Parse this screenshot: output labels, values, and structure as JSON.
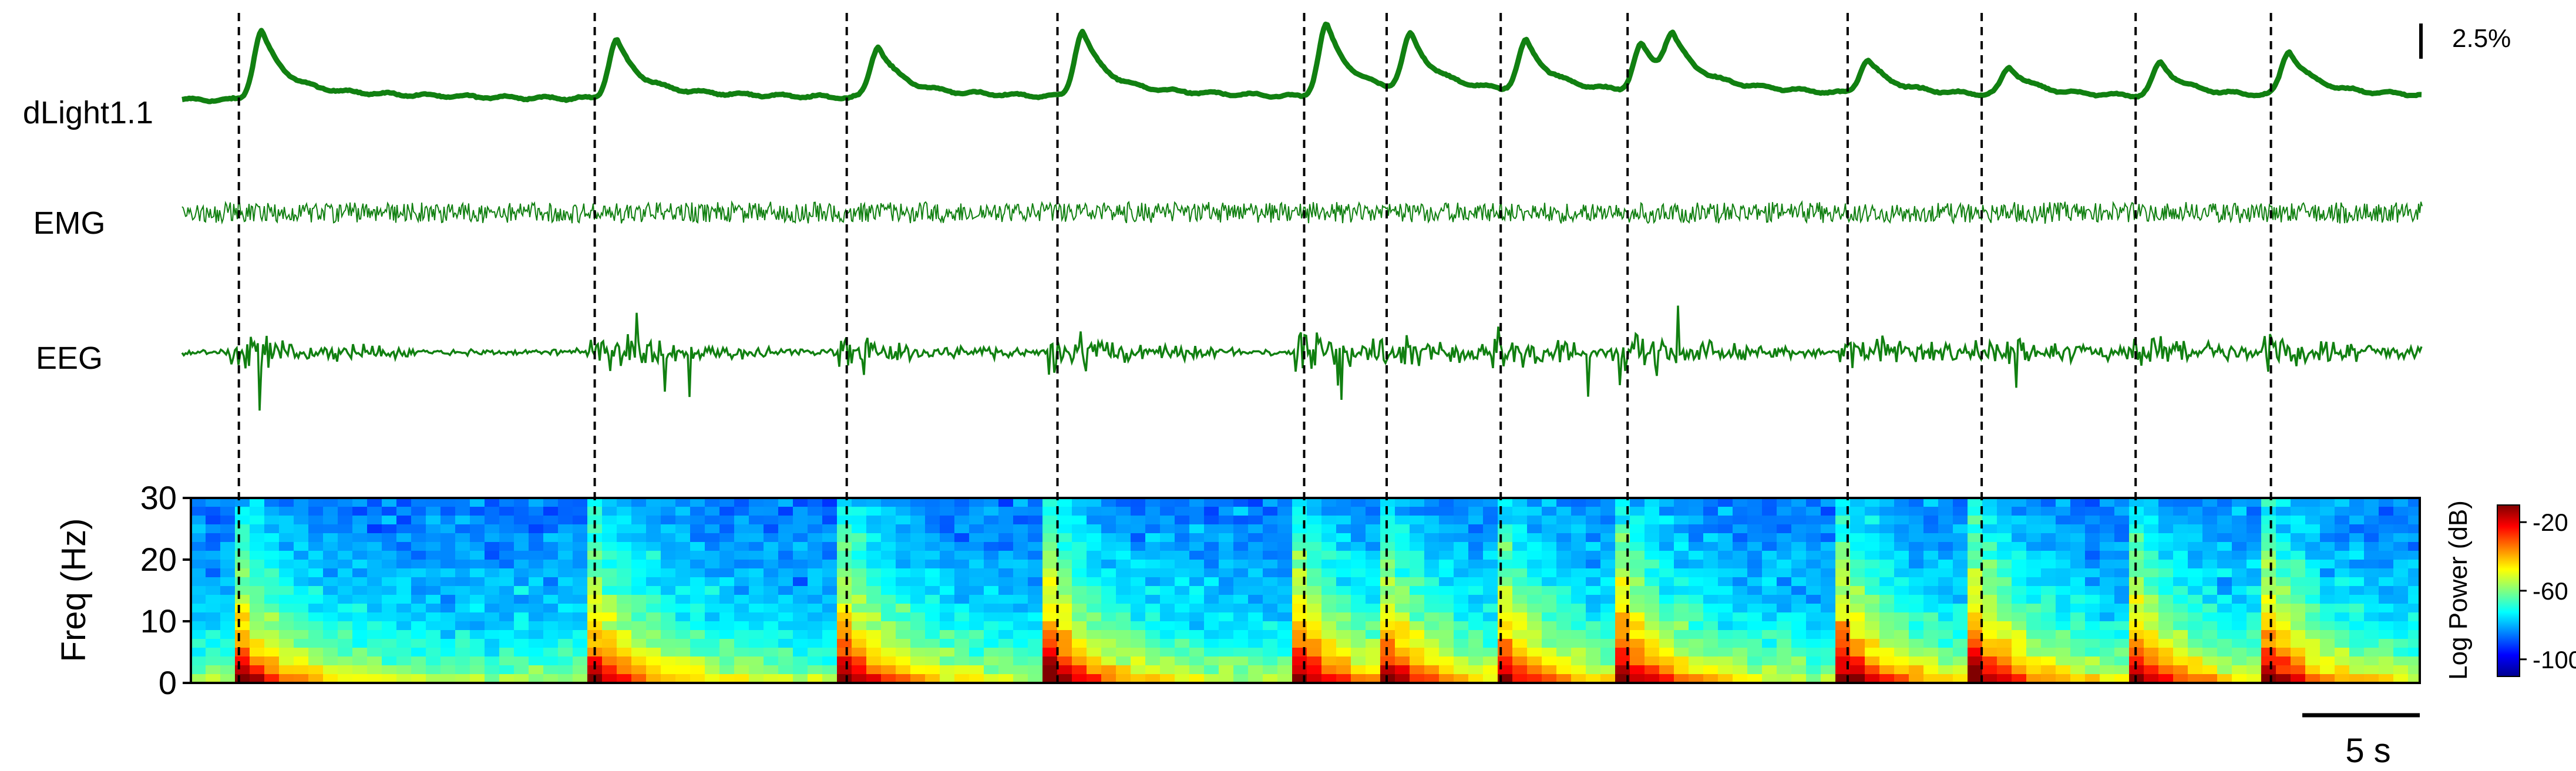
{
  "chart_data": {
    "type": "line",
    "title": "",
    "channels": [
      {
        "label": "dLight1.1",
        "color": "#118011"
      },
      {
        "label": "EMG",
        "color": "#118011"
      },
      {
        "label": "EEG",
        "color": "#118011"
      }
    ],
    "scale_bars": {
      "amplitude": "2.5%",
      "time": "5 s"
    },
    "event_markers_s": [
      1.28,
      9.3,
      14.98,
      19.73,
      25.29,
      27.15,
      29.72,
      32.58,
      37.54,
      40.56,
      44.03,
      47.08
    ],
    "dlight_peaks": [
      {
        "t": 1.8,
        "amp": 1.0
      },
      {
        "t": 9.8,
        "amp": 0.85
      },
      {
        "t": 15.7,
        "amp": 0.75
      },
      {
        "t": 20.3,
        "amp": 0.95
      },
      {
        "t": 25.8,
        "amp": 1.05
      },
      {
        "t": 27.7,
        "amp": 0.8
      },
      {
        "t": 30.3,
        "amp": 0.72
      },
      {
        "t": 32.9,
        "amp": 0.68
      },
      {
        "t": 33.6,
        "amp": 0.65
      },
      {
        "t": 38.0,
        "amp": 0.5
      },
      {
        "t": 41.2,
        "amp": 0.4
      },
      {
        "t": 44.6,
        "amp": 0.48
      },
      {
        "t": 47.5,
        "amp": 0.65
      }
    ],
    "time_range_s": [
      0,
      50.5
    ],
    "spectrogram": {
      "ylabel": "Freq (Hz)",
      "yticks": [
        0,
        10,
        20,
        30
      ],
      "ylim": [
        0,
        30
      ],
      "colorbar": {
        "label": "Log Power (dB)",
        "ticks": [
          -20,
          -60,
          -100
        ],
        "range": [
          -110,
          -10
        ],
        "colormap": "jet"
      }
    }
  }
}
